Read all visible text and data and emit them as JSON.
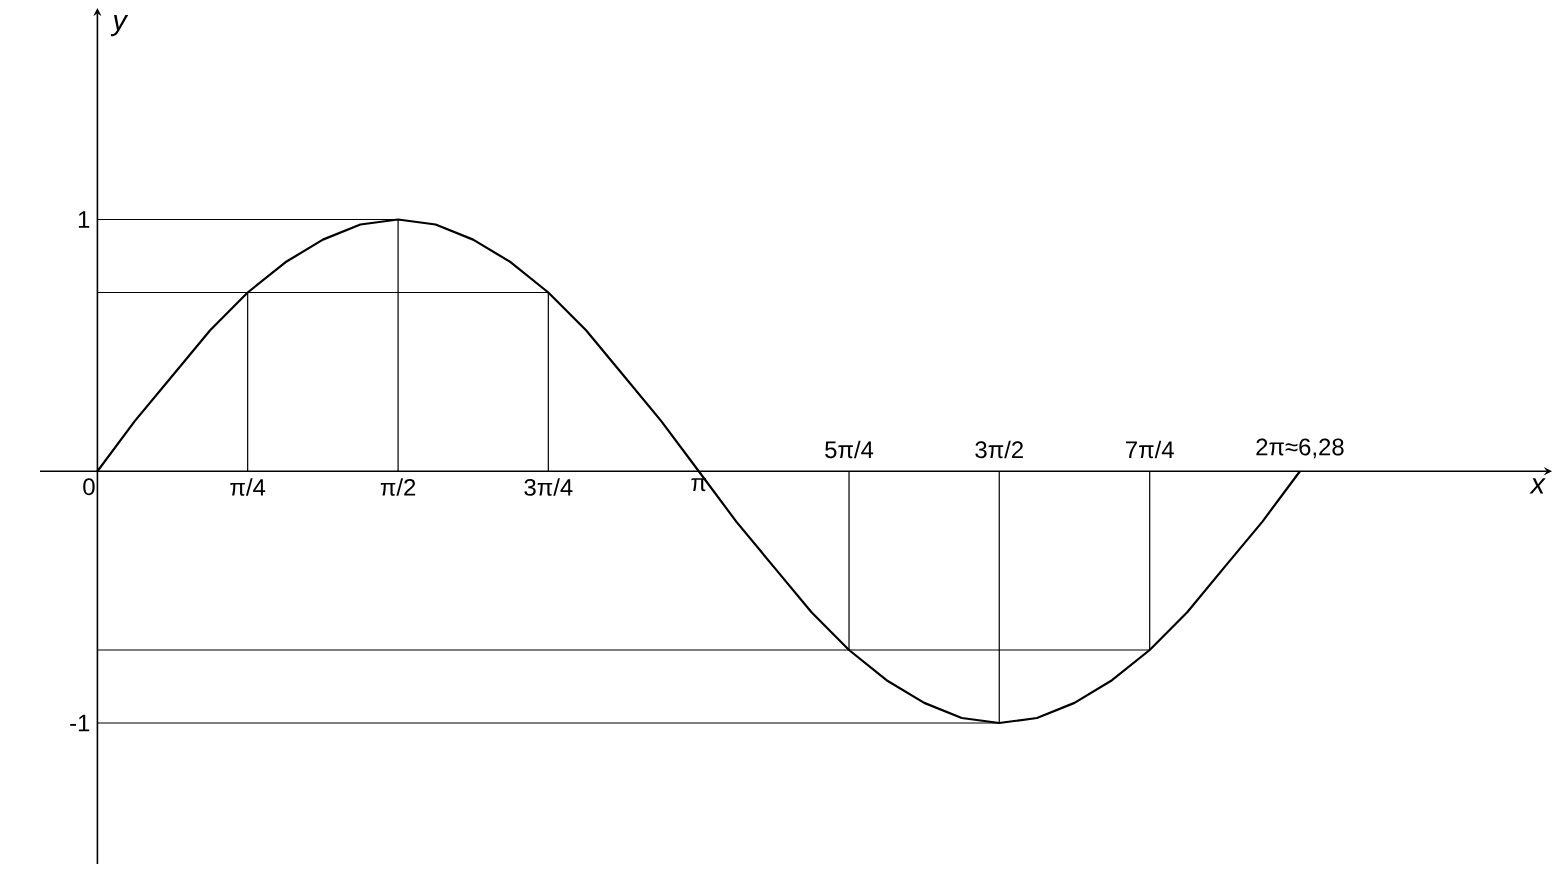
{
  "chart_data": {
    "type": "line",
    "xlabel": "x",
    "ylabel": "y",
    "xlim": [
      -0.3,
      7.6
    ],
    "ylim": [
      -1.56,
      1.84
    ],
    "xticks": [
      0,
      {
        "value": 0.785,
        "label": "π/4"
      },
      {
        "value": 1.571,
        "label": "π/2"
      },
      {
        "value": 2.356,
        "label": "3π/4"
      },
      {
        "value": 3.142,
        "label": "π"
      }
    ],
    "x2lim": [
      -0.3,
      7.6
    ],
    "x2ticks": [
      {
        "value": 3.927,
        "label": "5π/4"
      },
      {
        "value": 4.712,
        "label": "3π/2"
      },
      {
        "value": 5.498,
        "label": "7π/4"
      },
      {
        "value": 6.283,
        "label": "2π≈6,28"
      }
    ],
    "yticks": [
      -1,
      1
    ],
    "grid": false,
    "marker": "none",
    "line_style": "solid",
    "series": [
      {
        "color": "#000000",
        "x": [
          0,
          0.196,
          0.393,
          0.589,
          0.785,
          0.982,
          1.178,
          1.374,
          1.571,
          1.767,
          1.963,
          2.16,
          2.356,
          2.553,
          2.749,
          2.945,
          3.142,
          3.338,
          3.534,
          3.731,
          3.927,
          4.123,
          4.32,
          4.516,
          4.712,
          4.909,
          5.105,
          5.301,
          5.498,
          5.694,
          5.89,
          6.087,
          6.283
        ],
        "values": [
          0,
          0.2,
          0.38,
          0.56,
          0.71,
          0.83,
          0.92,
          0.98,
          1,
          0.98,
          0.92,
          0.83,
          0.71,
          0.56,
          0.38,
          0.2,
          0,
          -0.2,
          -0.38,
          -0.56,
          -0.71,
          -0.83,
          -0.92,
          -0.98,
          -1,
          -0.98,
          -0.92,
          -0.83,
          -0.71,
          -0.56,
          -0.38,
          -0.2,
          0
        ]
      },
      {
        "color": "#000000",
        "x": [
          0,
          1.571,
          null,
          0,
          2.356,
          null,
          0,
          5.498,
          null,
          0,
          4.712,
          null,
          0.785,
          0.785,
          null,
          1.571,
          1.571,
          null,
          2.356,
          2.356,
          null,
          3.927,
          3.927,
          null,
          4.712,
          4.712,
          null,
          5.498,
          5.498
        ],
        "values": [
          1,
          1,
          null,
          0.71,
          0.71,
          null,
          -0.71,
          -0.71,
          null,
          -1,
          -1,
          null,
          0,
          0.71,
          null,
          0,
          1,
          null,
          0,
          0.71,
          null,
          0,
          -0.71,
          null,
          0,
          -1,
          null,
          0,
          -0.71
        ]
      }
    ]
  }
}
